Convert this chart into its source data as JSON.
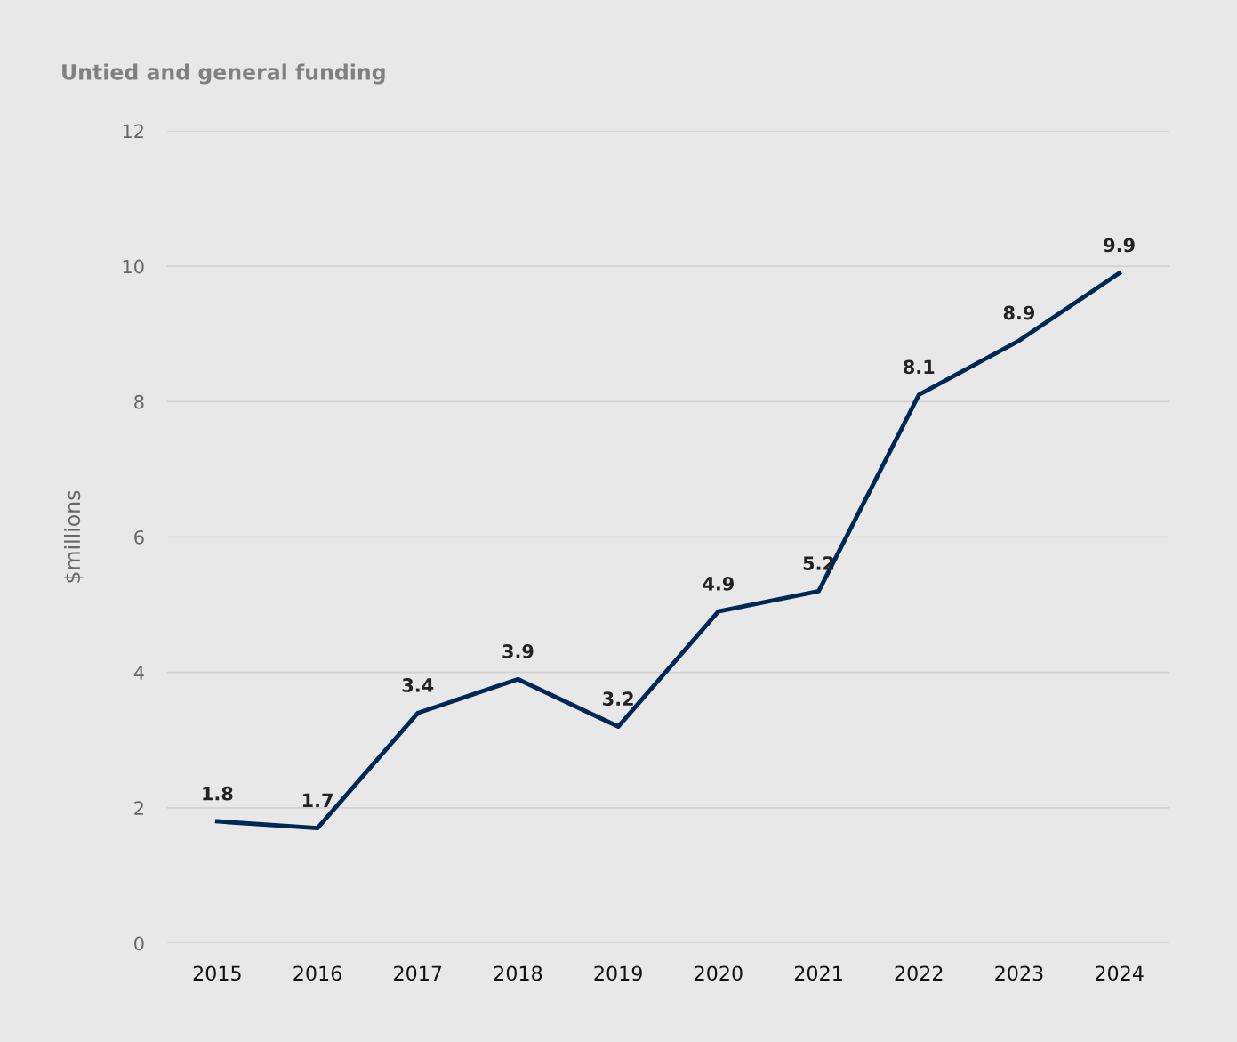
{
  "chart_data": {
    "type": "line",
    "title": "Untied and general funding",
    "ylabel": "$millions",
    "categories": [
      "2015",
      "2016",
      "2017",
      "2018",
      "2019",
      "2020",
      "2021",
      "2022",
      "2023",
      "2024"
    ],
    "series": [
      {
        "color": "#002855",
        "values": [
          1.8,
          1.7,
          3.4,
          3.9,
          3.2,
          4.9,
          5.2,
          8.1,
          8.9,
          9.9
        ]
      }
    ],
    "ylim": [
      0,
      12
    ],
    "yticks": [
      0,
      2,
      4,
      6,
      8,
      10,
      12
    ],
    "grid": "y",
    "data_labels": true,
    "marker": "none",
    "line_style": "solid",
    "legend": false
  }
}
